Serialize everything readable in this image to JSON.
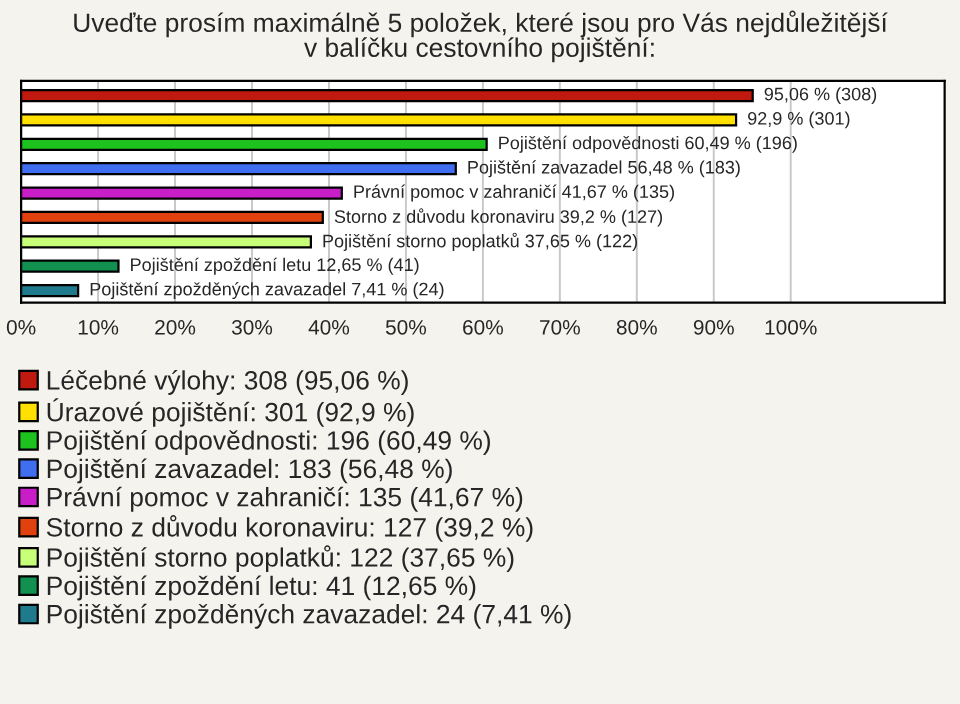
{
  "chart_data": {
    "type": "bar",
    "orientation": "horizontal",
    "title": "Uveďte prosím maximálně 5 položek, které jsou pro Vás nejdůležitější\nv balíčku cestovního pojištění:",
    "categories": [
      null,
      null,
      null,
      null,
      null,
      null,
      null,
      null,
      null
    ],
    "series": [
      {
        "name": "Léčebné výlohy: 308 (95,06 %)",
        "color": "#c0190f",
        "values": [
          95.06,
          null,
          null,
          null,
          null,
          null,
          null,
          null,
          null
        ],
        "value_labels": [
          "95,06 % (308)",
          null,
          null,
          null,
          null,
          null,
          null,
          null,
          null
        ]
      },
      {
        "name": "Úrazové pojištění: 301 (92,9 %)",
        "color": "#ffe000",
        "values": [
          null,
          92.9,
          null,
          null,
          null,
          null,
          null,
          null,
          null
        ],
        "value_labels": [
          null,
          "92,9 % (301)",
          null,
          null,
          null,
          null,
          null,
          null,
          null
        ]
      },
      {
        "name": "Pojištění odpovědnosti: 196 (60,49 %)",
        "color": "#1ec21e",
        "values": [
          null,
          null,
          60.49,
          null,
          null,
          null,
          null,
          null,
          null
        ],
        "value_labels": [
          null,
          null,
          "Pojištění odpovědnosti 60,49 % (196)",
          null,
          null,
          null,
          null,
          null,
          null
        ]
      },
      {
        "name": "Pojištění zavazadel: 183 (56,48 %)",
        "color": "#3f6ff0",
        "values": [
          null,
          null,
          null,
          56.48,
          null,
          null,
          null,
          null,
          null
        ],
        "value_labels": [
          null,
          null,
          null,
          "Pojištění zavazadel 56,48 % (183)",
          null,
          null,
          null,
          null,
          null
        ]
      },
      {
        "name": "Právní pomoc v zahraničí: 135 (41,67 %)",
        "color": "#c81ec8",
        "values": [
          null,
          null,
          null,
          null,
          41.67,
          null,
          null,
          null,
          null
        ],
        "value_labels": [
          null,
          null,
          null,
          null,
          "Právní pomoc v zahraničí 41,67 % (135)",
          null,
          null,
          null,
          null
        ]
      },
      {
        "name": "Storno z důvodu koronaviru: 127 (39,2 %)",
        "color": "#e0410f",
        "values": [
          null,
          null,
          null,
          null,
          null,
          39.2,
          null,
          null,
          null
        ],
        "value_labels": [
          null,
          null,
          null,
          null,
          null,
          "Storno z důvodu koronaviru 39,2 % (127)",
          null,
          null,
          null
        ]
      },
      {
        "name": "Pojištění storno poplatků: 122 (37,65 %)",
        "color": "#c8ff78",
        "values": [
          null,
          null,
          null,
          null,
          null,
          null,
          37.65,
          null,
          null
        ],
        "value_labels": [
          null,
          null,
          null,
          null,
          null,
          null,
          "Pojištění storno poplatků 37,65 % (122)",
          null,
          null
        ]
      },
      {
        "name": "Pojištění zpoždění letu: 41 (12,65 %)",
        "color": "#119050",
        "values": [
          null,
          null,
          null,
          null,
          null,
          null,
          null,
          12.65,
          null
        ],
        "value_labels": [
          null,
          null,
          null,
          null,
          null,
          null,
          null,
          "Pojištění zpoždění letu 12,65 % (41)",
          null
        ]
      },
      {
        "name": "Pojištění zpožděných zavazadel: 24 (7,41 %)",
        "color": "#1e7a8c",
        "values": [
          null,
          null,
          null,
          null,
          null,
          null,
          null,
          null,
          7.41
        ],
        "value_labels": [
          null,
          null,
          null,
          null,
          null,
          null,
          null,
          null,
          "Pojištění zpožděných zavazadel 7,41 % (24)"
        ]
      }
    ],
    "xlim": [
      0,
      120
    ],
    "xticks": [
      {
        "value": 0,
        "label": "0%"
      },
      {
        "value": 10,
        "label": "10%"
      },
      {
        "value": 20,
        "label": "20%"
      },
      {
        "value": 30,
        "label": "30%"
      },
      {
        "value": 40,
        "label": "40%"
      },
      {
        "value": 50,
        "label": "50%"
      },
      {
        "value": 60,
        "label": "60%"
      },
      {
        "value": 70,
        "label": "70%"
      },
      {
        "value": 80,
        "label": "80%"
      },
      {
        "value": 90,
        "label": "90%"
      },
      {
        "value": 100,
        "label": "100%"
      }
    ],
    "grid": "x",
    "tick_labels": "x",
    "legend": "bottom"
  }
}
